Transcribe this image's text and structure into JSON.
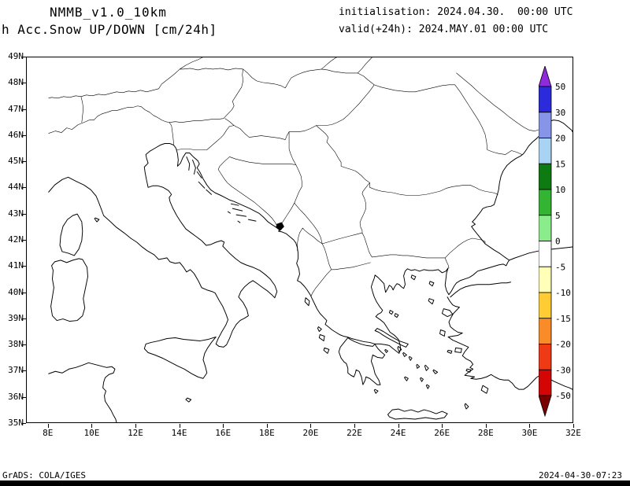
{
  "header": {
    "model_title": "NMMB_v1.0_10km",
    "field_title": "h Acc.Snow UP/DOWN [cm/24h]",
    "init_line": "initialisation: 2024.04.30.  00:00 UTC",
    "valid_line": "valid(+24h): 2024.MAY.01 00:00 UTC"
  },
  "footer": {
    "credit": "GrADS: COLA/IGES",
    "generated": "2024-04-30-07:23"
  },
  "chart_data": {
    "type": "map",
    "field": "Accumulated Snow UP/DOWN",
    "units": "cm/24h",
    "region": "Balkans / Southern Europe",
    "x_axis": {
      "tick_labels": [
        "8E",
        "10E",
        "12E",
        "14E",
        "16E",
        "18E",
        "20E",
        "22E",
        "24E",
        "26E",
        "28E",
        "30E",
        "32E"
      ]
    },
    "y_axis": {
      "tick_labels": [
        "49N",
        "48N",
        "47N",
        "46N",
        "45N",
        "44N",
        "43N",
        "42N",
        "41N",
        "40N",
        "39N",
        "38N",
        "37N",
        "36N",
        "35N"
      ]
    },
    "colorbar": {
      "tick_labels": [
        "50",
        "30",
        "20",
        "15",
        "10",
        "5",
        "0",
        "-5",
        "-10",
        "-15",
        "-20",
        "-30",
        "-50"
      ],
      "segment_colors_top_to_bottom": [
        "#2B2BDC",
        "#8894E8",
        "#A9D3F2",
        "#0E7A12",
        "#33B433",
        "#8AEC8A",
        "#FFFFFF",
        "#FFFFB8",
        "#FFCC33",
        "#F98C28",
        "#EF3A16",
        "#D40505"
      ],
      "above_max_color": "#8F2BDC",
      "below_min_color": "#7A0000",
      "outline_color": "#000000"
    }
  }
}
